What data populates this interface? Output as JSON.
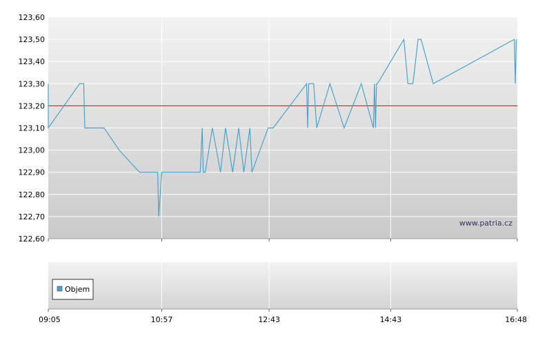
{
  "chart_data": [
    {
      "type": "line",
      "watermark": "www.patria.cz",
      "ylim": [
        122.6,
        123.6
      ],
      "y_ticks": [
        "122,60",
        "122,70",
        "122,80",
        "122,90",
        "123,00",
        "123,10",
        "123,20",
        "123,30",
        "123,40",
        "123,50",
        "123,60"
      ],
      "x_ticks": [
        "09:05",
        "10:57",
        "12:43",
        "14:43",
        "16:48"
      ],
      "reference_line": {
        "value": 123.2,
        "color": "#cc0000"
      },
      "series": [
        {
          "color": "#4aa3cc",
          "x": [
            "09:05",
            "09:05",
            "09:36",
            "09:40",
            "09:41",
            "09:50",
            "10:00",
            "10:15",
            "10:35",
            "10:45",
            "10:53",
            "10:54",
            "10:57",
            "11:05",
            "11:35",
            "11:37",
            "11:38",
            "11:40",
            "11:47",
            "11:55",
            "12:00",
            "12:07",
            "12:13",
            "12:18",
            "12:24",
            "12:26",
            "12:42",
            "12:47",
            "13:20",
            "13:21",
            "13:22",
            "13:27",
            "13:30",
            "13:43",
            "13:57",
            "14:14",
            "14:26",
            "14:27",
            "14:28",
            "14:29",
            "14:30",
            "14:56",
            "15:00",
            "15:05",
            "15:10",
            "15:13",
            "15:25",
            "16:45",
            "16:46",
            "16:47"
          ],
          "values": [
            123.3,
            123.1,
            123.3,
            123.3,
            123.1,
            123.1,
            123.1,
            123.0,
            122.9,
            122.9,
            122.9,
            122.7,
            122.9,
            122.9,
            122.9,
            123.1,
            122.9,
            122.9,
            123.1,
            122.9,
            123.1,
            122.9,
            123.1,
            122.9,
            123.1,
            122.9,
            123.1,
            123.1,
            123.3,
            123.1,
            123.3,
            123.3,
            123.1,
            123.3,
            123.1,
            123.3,
            123.1,
            123.3,
            123.1,
            123.3,
            123.3,
            123.5,
            123.3,
            123.3,
            123.5,
            123.5,
            123.3,
            123.5,
            123.3,
            123.5
          ]
        }
      ]
    },
    {
      "type": "bar",
      "legend": [
        "Objem"
      ],
      "legend_color": "#4aa3cc",
      "x_ticks": [
        "09:05",
        "10:57",
        "12:43",
        "14:43",
        "16:48"
      ],
      "values": []
    }
  ]
}
